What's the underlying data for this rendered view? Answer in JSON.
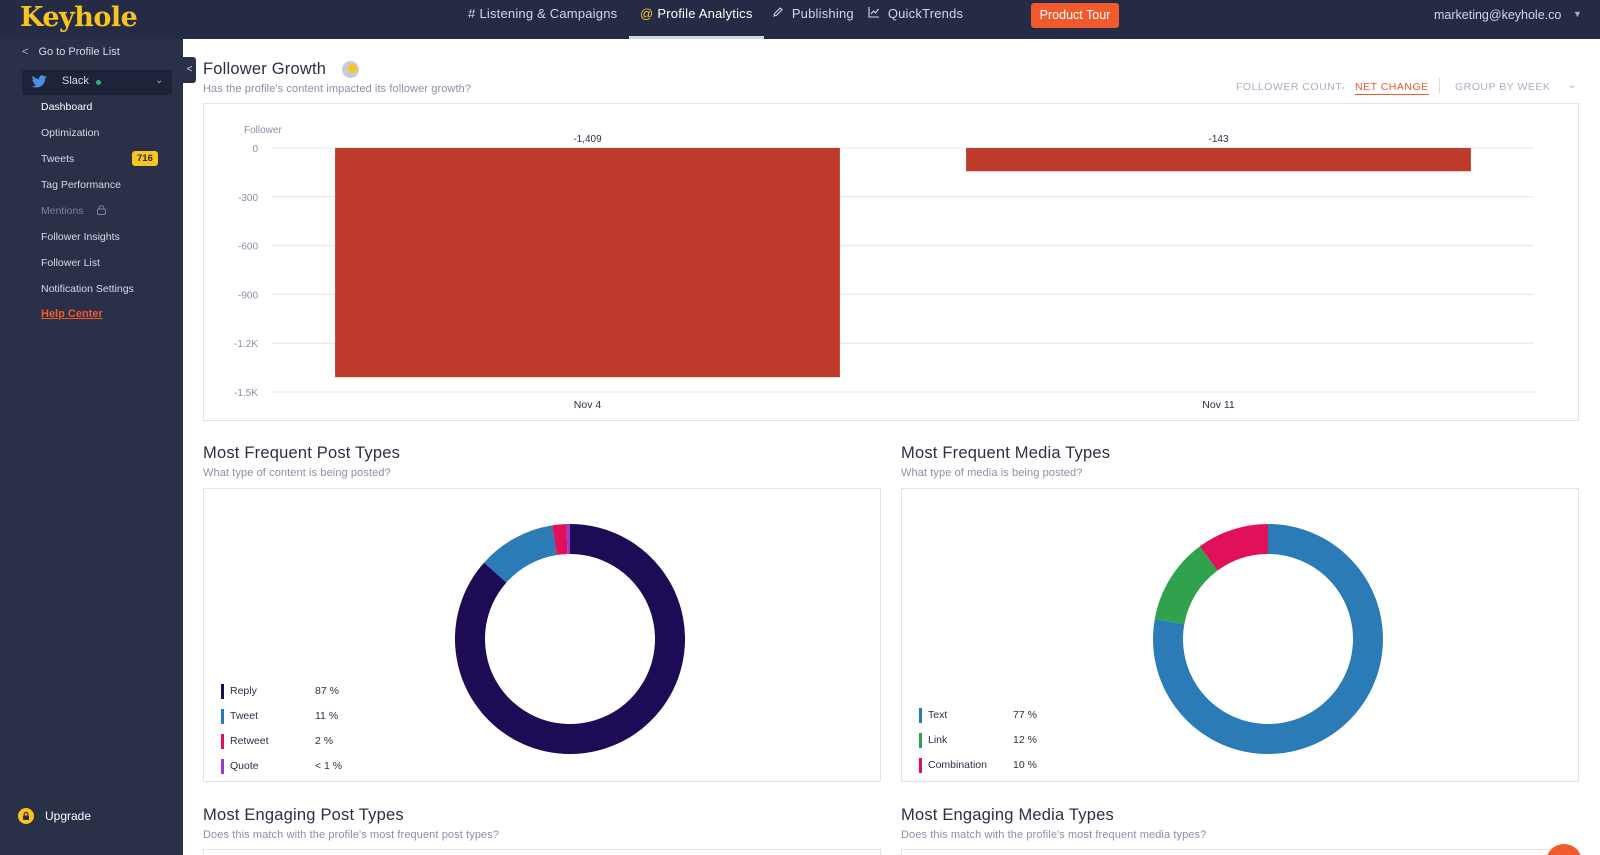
{
  "app": {
    "logo": "Keyhole"
  },
  "topnav": {
    "items": [
      {
        "icon": "#",
        "label": "Listening & Campaigns"
      },
      {
        "icon": "@",
        "label": "Profile Analytics"
      },
      {
        "icon": "pencil-icon",
        "label": "Publishing"
      },
      {
        "icon": "chart-icon",
        "label": "QuickTrends"
      }
    ],
    "active": "Profile Analytics",
    "tour_button": "Product Tour",
    "account": "marketing@keyhole.co"
  },
  "sidebar": {
    "back_link": "Go to Profile List",
    "profile": {
      "network": "twitter",
      "name": "Slack",
      "status_color": "#2bb673"
    },
    "items": [
      {
        "label": "Dashboard"
      },
      {
        "label": "Optimization"
      },
      {
        "label": "Tweets",
        "badge": "716"
      },
      {
        "label": "Tag Performance"
      },
      {
        "label": "Mentions",
        "locked": true
      },
      {
        "label": "Follower Insights"
      },
      {
        "label": "Follower List"
      },
      {
        "label": "Notification Settings"
      }
    ],
    "help_center": "Help Center",
    "upgrade": "Upgrade"
  },
  "follower_growth": {
    "title": "Follower Growth",
    "subtitle": "Has the profile's content impacted its follower growth?",
    "toggles": {
      "follower_count": "FOLLOWER COUNT",
      "net_change": "NET CHANGE",
      "group_by": "GROUP BY WEEK"
    },
    "active_toggle": "NET CHANGE"
  },
  "post_types": {
    "title": "Most Frequent Post Types",
    "subtitle": "What type of content is being posted?",
    "legend": [
      {
        "label": "Reply",
        "value": "87 %",
        "color": "#1d0b55"
      },
      {
        "label": "Tweet",
        "value": "11 %",
        "color": "#2a7bb6"
      },
      {
        "label": "Retweet",
        "value": "2 %",
        "color": "#e0105a"
      },
      {
        "label": "Quote",
        "value": "< 1 %",
        "color": "#9b3bc9"
      }
    ]
  },
  "media_types": {
    "title": "Most Frequent Media Types",
    "subtitle": "What type of media is being posted?",
    "legend": [
      {
        "label": "Text",
        "value": "77 %",
        "color": "#2a7bb6"
      },
      {
        "label": "Link",
        "value": "12 %",
        "color": "#30a24e"
      },
      {
        "label": "Combination",
        "value": "10 %",
        "color": "#e0105a"
      }
    ]
  },
  "engaging_posts": {
    "title": "Most Engaging Post Types",
    "subtitle": "Does this match with the profile's most frequent post types?"
  },
  "engaging_media": {
    "title": "Most Engaging Media Types",
    "subtitle": "Does this match with the profile's most frequent media types?"
  },
  "chart_data": [
    {
      "type": "bar",
      "ylabel": "Follower",
      "categories": [
        "Nov 4",
        "Nov 11"
      ],
      "values": [
        -1409,
        -143
      ],
      "data_labels": [
        "-1,409",
        "-143"
      ],
      "y_ticks": [
        "0",
        "-300",
        "-600",
        "-900",
        "-1.2K",
        "-1.5K"
      ],
      "ylim": [
        -1500,
        0
      ],
      "grid": true,
      "color": "#be3a2a"
    },
    {
      "type": "pie",
      "title": "Most Frequent Post Types",
      "categories": [
        "Reply",
        "Tweet",
        "Retweet",
        "Quote"
      ],
      "values": [
        87,
        11,
        2,
        0.5
      ]
    },
    {
      "type": "pie",
      "title": "Most Frequent Media Types",
      "categories": [
        "Text",
        "Link",
        "Combination"
      ],
      "values": [
        77,
        12,
        10
      ]
    }
  ]
}
